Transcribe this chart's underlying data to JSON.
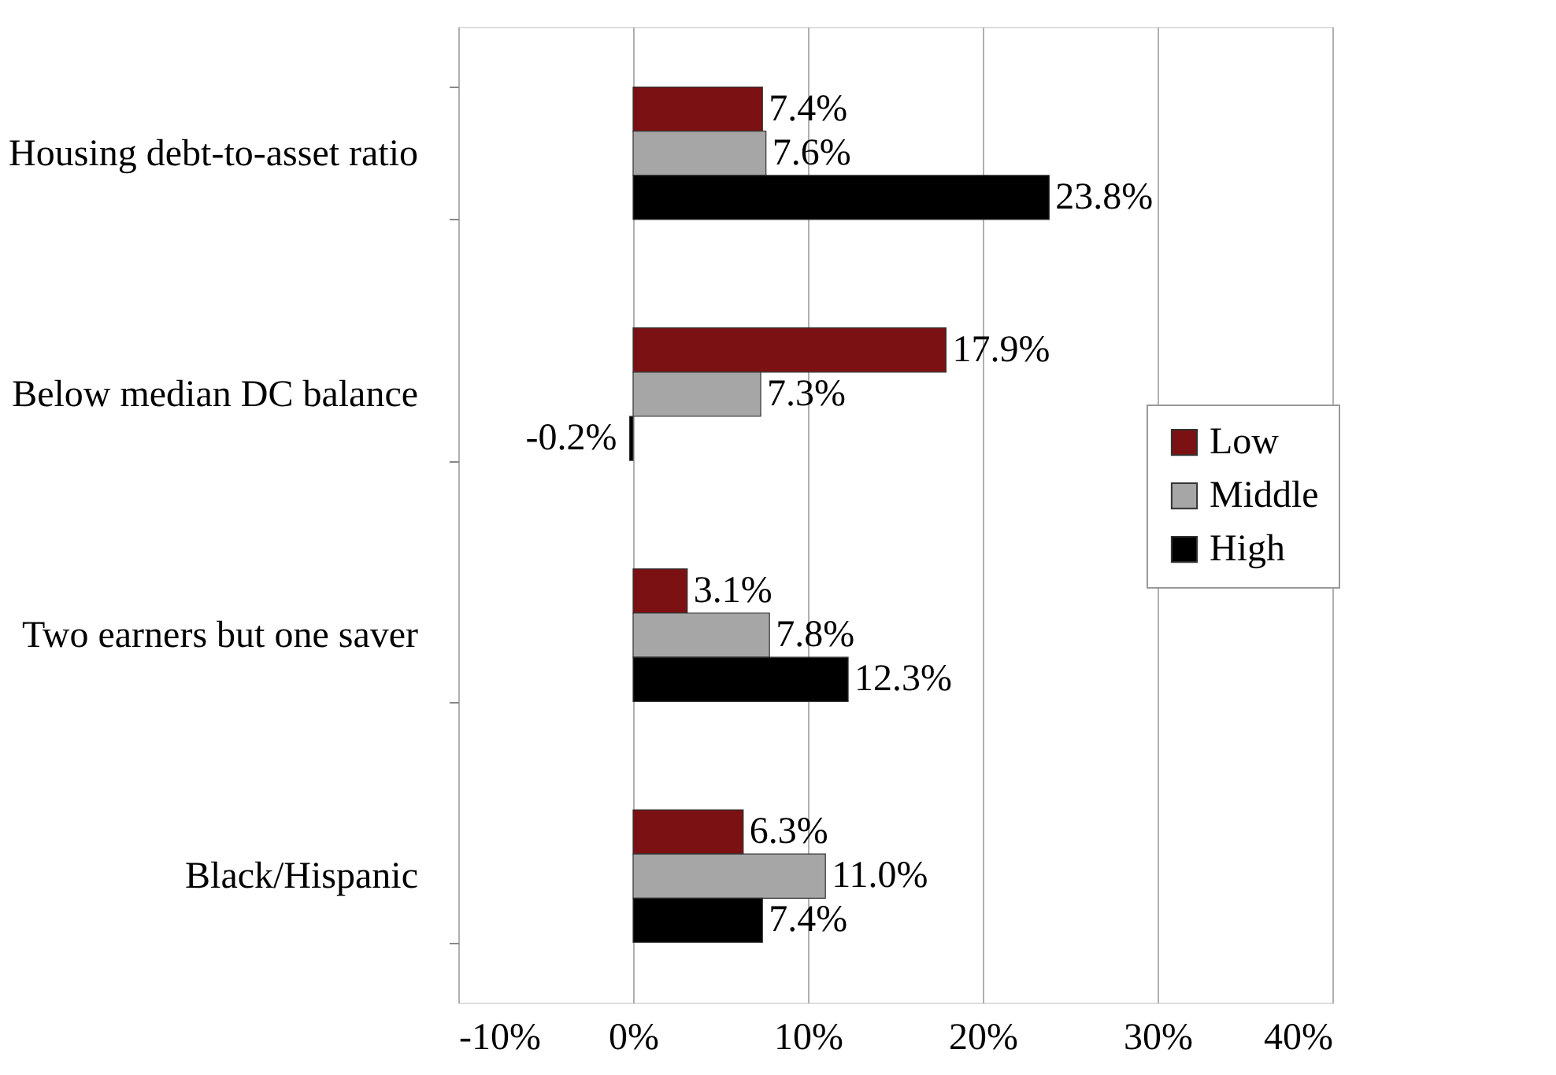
{
  "chart_data": {
    "type": "bar",
    "orientation": "horizontal",
    "categories": [
      "Housing debt-to-asset ratio",
      "Below median DC balance",
      "Two earners but one saver",
      "Black/Hispanic"
    ],
    "series": [
      {
        "name": "Low",
        "color": "#7b1113",
        "values": [
          7.4,
          17.9,
          3.1,
          6.3
        ],
        "value_labels": [
          "7.4%",
          "17.9%",
          "3.1%",
          "6.3%"
        ]
      },
      {
        "name": "Middle",
        "color": "#a6a6a6",
        "values": [
          7.6,
          7.3,
          7.8,
          11.0
        ],
        "value_labels": [
          "7.6%",
          "7.3%",
          "7.8%",
          "11.0%"
        ]
      },
      {
        "name": "High",
        "color": "#000000",
        "values": [
          23.8,
          -0.2,
          12.3,
          7.4
        ],
        "value_labels": [
          "23.8%",
          "-0.2%",
          "12.3%",
          "7.4%"
        ]
      }
    ],
    "xlim": [
      -10,
      40
    ],
    "xticks": [
      {
        "value": -10,
        "label": "-10%"
      },
      {
        "value": 0,
        "label": "0%"
      },
      {
        "value": 10,
        "label": "10%"
      },
      {
        "value": 20,
        "label": "20%"
      },
      {
        "value": 30,
        "label": "30%"
      },
      {
        "value": 40,
        "label": "40%"
      }
    ],
    "grid": "x",
    "legend": "right"
  }
}
